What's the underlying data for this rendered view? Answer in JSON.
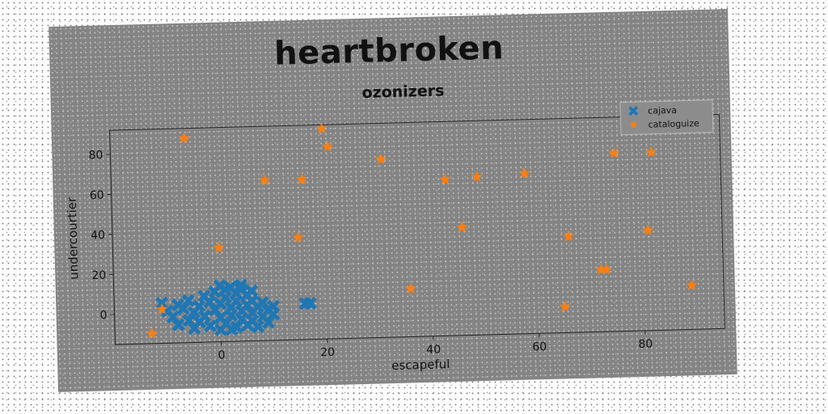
{
  "header": {
    "title": "heartbroken"
  },
  "chart_data": {
    "type": "scatter",
    "title": "ozonizers",
    "xlabel": "escapeful",
    "ylabel": "undercourtier",
    "xlim": [
      -20,
      95
    ],
    "ylim": [
      -15,
      92
    ],
    "xticks": [
      0,
      20,
      40,
      60,
      80
    ],
    "yticks": [
      0,
      20,
      40,
      60,
      80
    ],
    "grid": false,
    "legend_position": "top-right",
    "series": [
      {
        "name": "cajava",
        "marker": "x-filled",
        "color": "#1f77b4",
        "points": [
          [
            -11,
            5
          ],
          [
            -10,
            1
          ],
          [
            -9,
            -2
          ],
          [
            -8,
            4
          ],
          [
            -8,
            -6
          ],
          [
            -7,
            2
          ],
          [
            -6,
            -4
          ],
          [
            -6,
            6
          ],
          [
            -5,
            0
          ],
          [
            -5,
            -8
          ],
          [
            -4,
            3
          ],
          [
            -4,
            -5
          ],
          [
            -3,
            -2
          ],
          [
            -2,
            5
          ],
          [
            -2,
            -7
          ],
          [
            -1,
            1
          ],
          [
            -1,
            10
          ],
          [
            0,
            -3
          ],
          [
            0,
            13
          ],
          [
            0,
            4
          ],
          [
            1,
            7
          ],
          [
            1,
            -6
          ],
          [
            1,
            11
          ],
          [
            2,
            2
          ],
          [
            2,
            -2
          ],
          [
            2,
            12
          ],
          [
            3,
            -8
          ],
          [
            3,
            5
          ],
          [
            3,
            9
          ],
          [
            4,
            0
          ],
          [
            4,
            -4
          ],
          [
            4,
            11
          ],
          [
            5,
            3
          ],
          [
            5,
            -7
          ],
          [
            5,
            8
          ],
          [
            6,
            -1
          ],
          [
            6,
            5
          ],
          [
            6,
            -5
          ],
          [
            7,
            2
          ],
          [
            7,
            -8
          ],
          [
            8,
            -3
          ],
          [
            8,
            4
          ],
          [
            9,
            0
          ],
          [
            9,
            -6
          ],
          [
            10,
            -2
          ],
          [
            10,
            2
          ],
          [
            -3,
            8
          ],
          [
            0,
            -9
          ],
          [
            2,
            -9
          ],
          [
            4,
            13
          ],
          [
            6,
            10
          ],
          [
            16,
            3
          ],
          [
            17,
            3
          ]
        ]
      },
      {
        "name": "cataloguize",
        "marker": "star",
        "color": "#ff7f0e",
        "points": [
          [
            -13,
            -10
          ],
          [
            -11,
            2
          ],
          [
            -6,
            87
          ],
          [
            0,
            32
          ],
          [
            9,
            65
          ],
          [
            15,
            36
          ],
          [
            16,
            65
          ],
          [
            20,
            90
          ],
          [
            21,
            81
          ],
          [
            31,
            74
          ],
          [
            36,
            9
          ],
          [
            43,
            63
          ],
          [
            46,
            39
          ],
          [
            49,
            64
          ],
          [
            58,
            65
          ],
          [
            65,
            -2
          ],
          [
            66,
            33
          ],
          [
            72,
            16
          ],
          [
            73,
            16
          ],
          [
            75,
            74
          ],
          [
            81,
            35
          ],
          [
            82,
            74
          ],
          [
            89,
            7
          ]
        ]
      }
    ]
  }
}
